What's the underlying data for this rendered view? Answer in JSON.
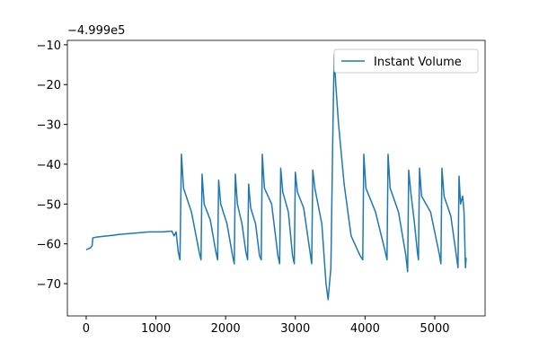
{
  "chart_data": {
    "type": "line",
    "y_offset_label": "−4.999e5",
    "legend": "upper right",
    "x": [
      0,
      60,
      85,
      95,
      150,
      300,
      500,
      700,
      900,
      1100,
      1230,
      1260,
      1290,
      1320,
      1345,
      1366,
      1396,
      1510,
      1620,
      1647,
      1662,
      1692,
      1780,
      1860,
      1885,
      1900,
      1930,
      2020,
      2100,
      2124,
      2139,
      2169,
      2235,
      2290,
      2315,
      2330,
      2360,
      2430,
      2486,
      2511,
      2526,
      2556,
      2660,
      2750,
      2775,
      2790,
      2820,
      2900,
      2960,
      2985,
      3000,
      3030,
      3120,
      3210,
      3235,
      3250,
      3280,
      3380,
      3440,
      3470,
      3510,
      3540,
      3557,
      3580,
      3620,
      3700,
      3800,
      3930,
      3967,
      3982,
      4012,
      4150,
      4290,
      4315,
      4330,
      4360,
      4480,
      4586,
      4611,
      4626,
      4656,
      4710,
      4750,
      4766,
      4781,
      4811,
      4940,
      5070,
      5088,
      5103,
      5133,
      5230,
      5310,
      5333,
      5348,
      5370,
      5400,
      5420,
      5440,
      5450
    ],
    "series": [
      {
        "name": "Instant Volume",
        "color": "#1f77b4",
        "values": [
          -61.5,
          -61,
          -60.5,
          -58.5,
          -58.3,
          -58,
          -57.6,
          -57.3,
          -57,
          -57,
          -56.8,
          -58,
          -57,
          -62,
          -64,
          -37.5,
          -46,
          -52,
          -62,
          -64,
          -42.5,
          -50,
          -54,
          -62,
          -64,
          -44,
          -50,
          -55,
          -63,
          -65,
          -42.5,
          -50,
          -55,
          -62,
          -64,
          -45,
          -51,
          -55,
          -63,
          -64,
          -37.5,
          -46,
          -50,
          -63,
          -65,
          -41,
          -47,
          -52,
          -63,
          -65,
          -42,
          -47,
          -51,
          -62,
          -65,
          -41.5,
          -46,
          -55,
          -70,
          -74,
          -66,
          -30,
          -12.5,
          -20,
          -30,
          -45,
          -58,
          -63,
          -64,
          -37.5,
          -46,
          -52,
          -62,
          -64,
          -37.5,
          -46,
          -52,
          -63,
          -67,
          -41.5,
          -47,
          -55,
          -62,
          -64,
          -41,
          -48,
          -52,
          -63,
          -65,
          -41,
          -48,
          -53,
          -63,
          -66,
          -43,
          -50,
          -48,
          -52,
          -66,
          -63.5
        ]
      }
    ],
    "xlim": [
      -270,
      5722
    ],
    "ylim": [
      -78.1,
      -8.9
    ],
    "xticks": [
      0,
      1000,
      2000,
      3000,
      4000,
      5000
    ],
    "yticks": [
      {
        "value": -70,
        "label": "−70"
      },
      {
        "value": -60,
        "label": "−60"
      },
      {
        "value": -50,
        "label": "−50"
      },
      {
        "value": -40,
        "label": "−40"
      },
      {
        "value": -30,
        "label": "−30"
      },
      {
        "value": -20,
        "label": "−20"
      },
      {
        "value": -10,
        "label": "−10"
      }
    ]
  }
}
